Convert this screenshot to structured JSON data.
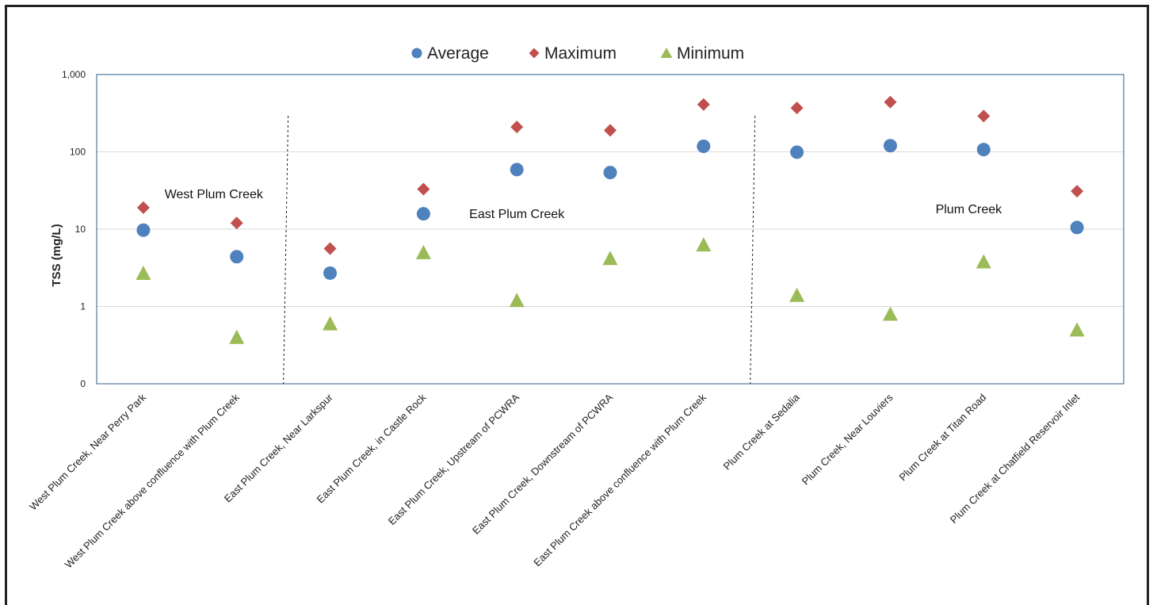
{
  "chart_data": {
    "type": "scatter",
    "ylabel": "TSS (mg/L)",
    "yscale": "log",
    "ylim": [
      0.1,
      1000
    ],
    "yticks": [
      {
        "value": 0.1,
        "label": "0"
      },
      {
        "value": 1,
        "label": "1"
      },
      {
        "value": 10,
        "label": "10"
      },
      {
        "value": 100,
        "label": "100"
      },
      {
        "value": 1000,
        "label": "1,000"
      }
    ],
    "grid": true,
    "legend_position": "top-center",
    "categories": [
      "West Plum Creek, Near Perry Park",
      "West Plum Creek above confluence with Plum Creek",
      "East Plum Creek, Near Larkspur",
      "East Plum Creek, in Castle Rock",
      "East Plum Creek, Upstream of PCWRA",
      "East Plum Creek, Downstream of PCWRA",
      "East Plum Creek above confluence with Plum Creek",
      "Plum Creek at Sedalia",
      "Plum Creek, Near Louviers",
      "Plum Creek at Titan Road",
      "Plum Creek at Chatfield Reservoir Inlet"
    ],
    "series": [
      {
        "name": "Average",
        "marker": "circle",
        "color": "#4F81BD",
        "values": [
          9.7,
          4.4,
          2.7,
          15.8,
          59,
          54,
          118,
          99,
          120,
          107,
          10.5
        ]
      },
      {
        "name": "Maximum",
        "marker": "diamond",
        "color": "#C0504D",
        "values": [
          19,
          12,
          5.6,
          33,
          210,
          190,
          410,
          370,
          440,
          290,
          31
        ]
      },
      {
        "name": "Minimum",
        "marker": "triangle",
        "color": "#9BBB59",
        "values": [
          2.7,
          0.4,
          0.6,
          5.0,
          1.2,
          4.2,
          6.3,
          1.4,
          0.8,
          3.8,
          0.5
        ]
      }
    ],
    "group_labels": [
      {
        "text": "West Plum Creek",
        "y": 25
      },
      {
        "text": "East Plum Creek",
        "y": 14
      },
      {
        "text": "Plum Creek",
        "y": 16
      }
    ]
  }
}
